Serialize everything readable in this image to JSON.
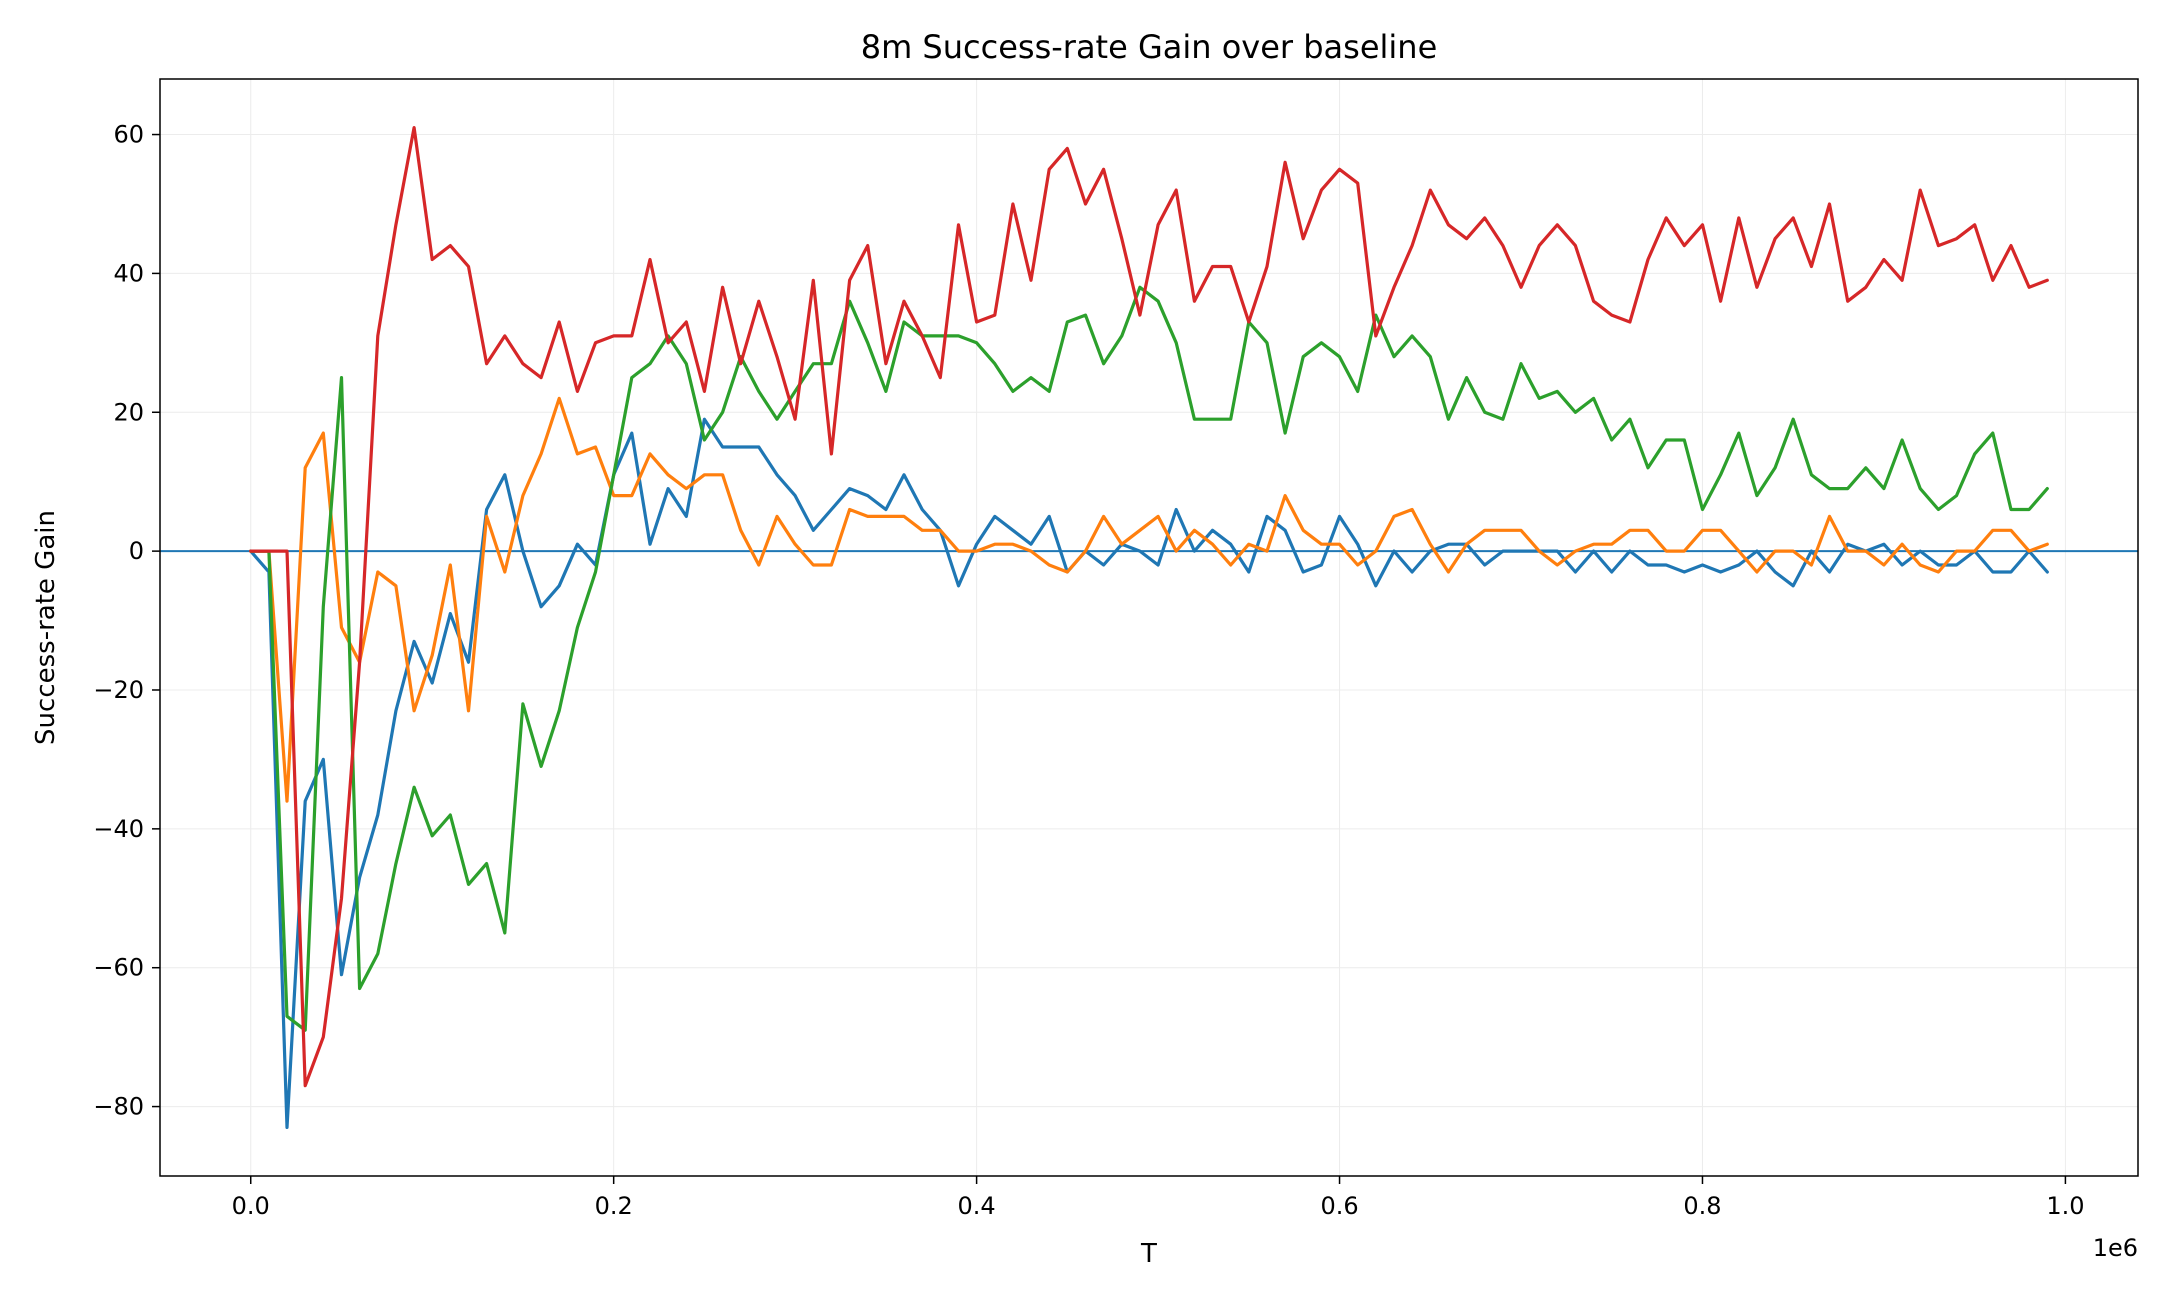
{
  "chart_data": {
    "type": "line",
    "title": "8m Success-rate Gain over baseline",
    "xlabel": "T",
    "ylabel": "Success-rate Gain",
    "x_offset_label": "1e6",
    "xlim": [
      -50000,
      1040000
    ],
    "ylim": [
      -90,
      68
    ],
    "xticks": [
      0,
      200000,
      400000,
      600000,
      800000,
      1000000
    ],
    "xtick_labels": [
      "0.0",
      "0.2",
      "0.4",
      "0.6",
      "0.8",
      "1.0"
    ],
    "yticks": [
      -80,
      -60,
      -40,
      -20,
      0,
      20,
      40,
      60
    ],
    "ytick_labels": [
      "−80",
      "−60",
      "−40",
      "−20",
      "0",
      "20",
      "40",
      "60"
    ],
    "grid": true,
    "reference_line": {
      "y": 0,
      "color": "#1f77b4"
    },
    "x": [
      0,
      10000,
      20000,
      30000,
      40000,
      50000,
      60000,
      70000,
      80000,
      90000,
      100000,
      110000,
      120000,
      130000,
      140000,
      150000,
      160000,
      170000,
      180000,
      190000,
      200000,
      210000,
      220000,
      230000,
      240000,
      250000,
      260000,
      270000,
      280000,
      290000,
      300000,
      310000,
      320000,
      330000,
      340000,
      350000,
      360000,
      370000,
      380000,
      390000,
      400000,
      410000,
      420000,
      430000,
      440000,
      450000,
      460000,
      470000,
      480000,
      490000,
      500000,
      510000,
      520000,
      530000,
      540000,
      550000,
      560000,
      570000,
      580000,
      590000,
      600000,
      610000,
      620000,
      630000,
      640000,
      650000,
      660000,
      670000,
      680000,
      690000,
      700000,
      710000,
      720000,
      730000,
      740000,
      750000,
      760000,
      770000,
      780000,
      790000,
      800000,
      810000,
      820000,
      830000,
      840000,
      850000,
      860000,
      870000,
      880000,
      890000,
      900000,
      910000,
      920000,
      930000,
      940000,
      950000,
      960000,
      970000,
      980000,
      990000
    ],
    "series": [
      {
        "color": "#1f77b4",
        "values": [
          0,
          -3,
          -83,
          -36,
          -30,
          -61,
          -47,
          -38,
          -23,
          -13,
          -19,
          -9,
          -16,
          6,
          11,
          0,
          -8,
          -5,
          1,
          -2,
          11,
          17,
          1,
          9,
          5,
          19,
          15,
          15,
          15,
          11,
          8,
          3,
          6,
          9,
          8,
          6,
          11,
          6,
          3,
          -5,
          1,
          5,
          3,
          1,
          5,
          -3,
          0,
          -2,
          1,
          0,
          -2,
          6,
          0,
          3,
          1,
          -3,
          5,
          3,
          -3,
          -2,
          5,
          1,
          -5,
          0,
          -3,
          0,
          1,
          1,
          -2,
          0,
          0,
          0,
          0,
          -3,
          0,
          -3,
          0,
          -2,
          -2,
          -3,
          -2,
          -3,
          -2,
          0,
          -3,
          -5,
          0,
          -3,
          1,
          0,
          1,
          -2,
          0,
          -2,
          -2,
          0,
          -3,
          -3,
          0,
          -3
        ]
      },
      {
        "color": "#ff7f0e",
        "values": [
          0,
          0,
          -36,
          12,
          17,
          -11,
          -16,
          -3,
          -5,
          -23,
          -15,
          -2,
          -23,
          5,
          -3,
          8,
          14,
          22,
          14,
          15,
          8,
          8,
          14,
          11,
          9,
          11,
          11,
          3,
          -2,
          5,
          1,
          -2,
          -2,
          6,
          5,
          5,
          5,
          3,
          3,
          0,
          0,
          1,
          1,
          0,
          -2,
          -3,
          0,
          5,
          1,
          3,
          5,
          0,
          3,
          1,
          -2,
          1,
          0,
          8,
          3,
          1,
          1,
          -2,
          0,
          5,
          6,
          1,
          -3,
          1,
          3,
          3,
          3,
          0,
          -2,
          0,
          1,
          1,
          3,
          3,
          0,
          0,
          3,
          3,
          0,
          -3,
          0,
          0,
          -2,
          5,
          0,
          0,
          -2,
          1,
          -2,
          -3,
          0,
          0,
          3,
          3,
          0,
          1
        ]
      },
      {
        "color": "#2ca02c",
        "values": [
          0,
          0,
          -67,
          -69,
          -8,
          25,
          -63,
          -58,
          -45,
          -34,
          -41,
          -38,
          -48,
          -45,
          -55,
          -22,
          -31,
          -23,
          -11,
          -3,
          11,
          25,
          27,
          31,
          27,
          16,
          20,
          28,
          23,
          19,
          23,
          27,
          27,
          36,
          30,
          23,
          33,
          31,
          31,
          31,
          30,
          27,
          23,
          25,
          23,
          33,
          34,
          27,
          31,
          38,
          36,
          30,
          19,
          19,
          19,
          33,
          30,
          17,
          28,
          30,
          28,
          23,
          34,
          28,
          31,
          28,
          19,
          25,
          20,
          19,
          27,
          22,
          23,
          20,
          22,
          16,
          19,
          12,
          16,
          16,
          6,
          11,
          17,
          8,
          12,
          19,
          11,
          9,
          9,
          12,
          9,
          16,
          9,
          6,
          8,
          14,
          17,
          6,
          6,
          9
        ]
      },
      {
        "color": "#d62728",
        "values": [
          0,
          0,
          0,
          -77,
          -70,
          -50,
          -16,
          31,
          47,
          61,
          42,
          44,
          41,
          27,
          31,
          27,
          25,
          33,
          23,
          30,
          31,
          31,
          42,
          30,
          33,
          23,
          38,
          27,
          36,
          28,
          19,
          39,
          14,
          39,
          44,
          27,
          36,
          31,
          25,
          47,
          33,
          34,
          50,
          39,
          55,
          58,
          50,
          55,
          45,
          34,
          47,
          52,
          36,
          41,
          41,
          33,
          41,
          56,
          45,
          52,
          55,
          53,
          31,
          38,
          44,
          52,
          47,
          45,
          48,
          44,
          38,
          44,
          47,
          44,
          36,
          34,
          33,
          42,
          48,
          44,
          47,
          36,
          48,
          38,
          45,
          48,
          41,
          50,
          36,
          38,
          42,
          39,
          52,
          44,
          45,
          47,
          39,
          44,
          38,
          39
        ]
      }
    ]
  }
}
